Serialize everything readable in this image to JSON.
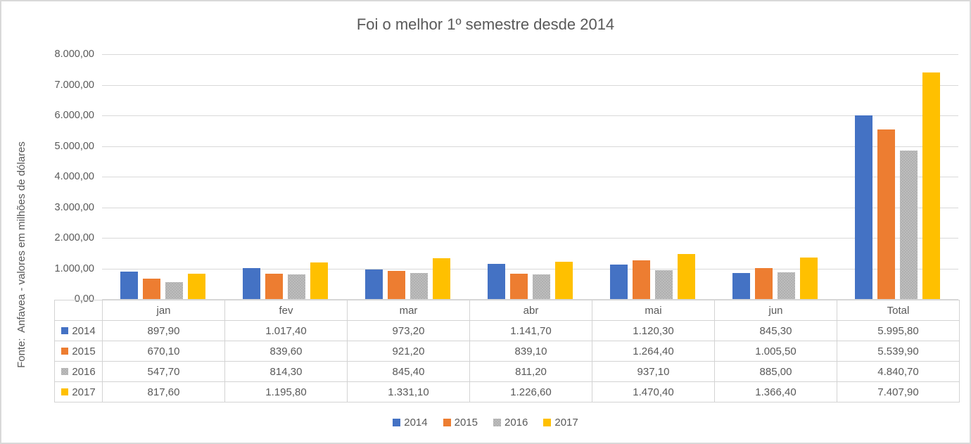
{
  "chart_data": {
    "type": "bar",
    "title": "Foi o melhor 1º semestre desde 2014",
    "ylabel": "Fonte:  Anfavea - valores em milhões de dólares",
    "xlabel": "",
    "ylim": [
      0,
      8000
    ],
    "ytick_step": 1000,
    "ytick_labels_top_to_bottom": [
      "8.000,00",
      "7.000,00",
      "6.000,00",
      "5.000,00",
      "4.000,00",
      "3.000,00",
      "2.000,00",
      "1.000,00",
      "0,00"
    ],
    "grid": true,
    "legend_position": "bottom",
    "categories": [
      "jan",
      "fev",
      "mar",
      "abr",
      "mai",
      "jun",
      "Total"
    ],
    "series": [
      {
        "name": "2014",
        "color": "#4472C4",
        "pattern": "solid",
        "values": [
          897.9,
          1017.4,
          973.2,
          1141.7,
          1120.3,
          845.3,
          5995.8
        ]
      },
      {
        "name": "2015",
        "color": "#ED7D31",
        "pattern": "solid",
        "values": [
          670.1,
          839.6,
          921.2,
          839.1,
          1264.4,
          1005.5,
          5539.9
        ]
      },
      {
        "name": "2016",
        "color": "#A5A5A5",
        "pattern": "dotted",
        "values": [
          547.7,
          814.3,
          845.4,
          811.2,
          937.1,
          885.0,
          4840.7
        ]
      },
      {
        "name": "2017",
        "color": "#FFC000",
        "pattern": "solid",
        "values": [
          817.6,
          1195.8,
          1331.1,
          1226.6,
          1470.4,
          1366.4,
          7407.9
        ]
      }
    ]
  },
  "table": {
    "column_headers": [
      "jan",
      "fev",
      "mar",
      "abr",
      "mai",
      "jun",
      "Total"
    ],
    "rows": [
      {
        "label": "2014",
        "cells": [
          "897,90",
          "1.017,40",
          "973,20",
          "1.141,70",
          "1.120,30",
          "845,30",
          "5.995,80"
        ]
      },
      {
        "label": "2015",
        "cells": [
          "670,10",
          "839,60",
          "921,20",
          "839,10",
          "1.264,40",
          "1.005,50",
          "5.539,90"
        ]
      },
      {
        "label": "2016",
        "cells": [
          "547,70",
          "814,30",
          "845,40",
          "811,20",
          "937,10",
          "885,00",
          "4.840,70"
        ]
      },
      {
        "label": "2017",
        "cells": [
          "817,60",
          "1.195,80",
          "1.331,10",
          "1.226,60",
          "1.470,40",
          "1.366,40",
          "7.407,90"
        ]
      }
    ]
  },
  "legend": {
    "items": [
      "2014",
      "2015",
      "2016",
      "2017"
    ]
  },
  "colors": {
    "series_2014": "#4472C4",
    "series_2015": "#ED7D31",
    "series_2016": "#A5A5A5",
    "series_2017": "#FFC000",
    "text": "#595959",
    "gridline": "#D9D9D9",
    "table_border": "#D3D3D3",
    "frame_border": "#D9D9D9"
  }
}
